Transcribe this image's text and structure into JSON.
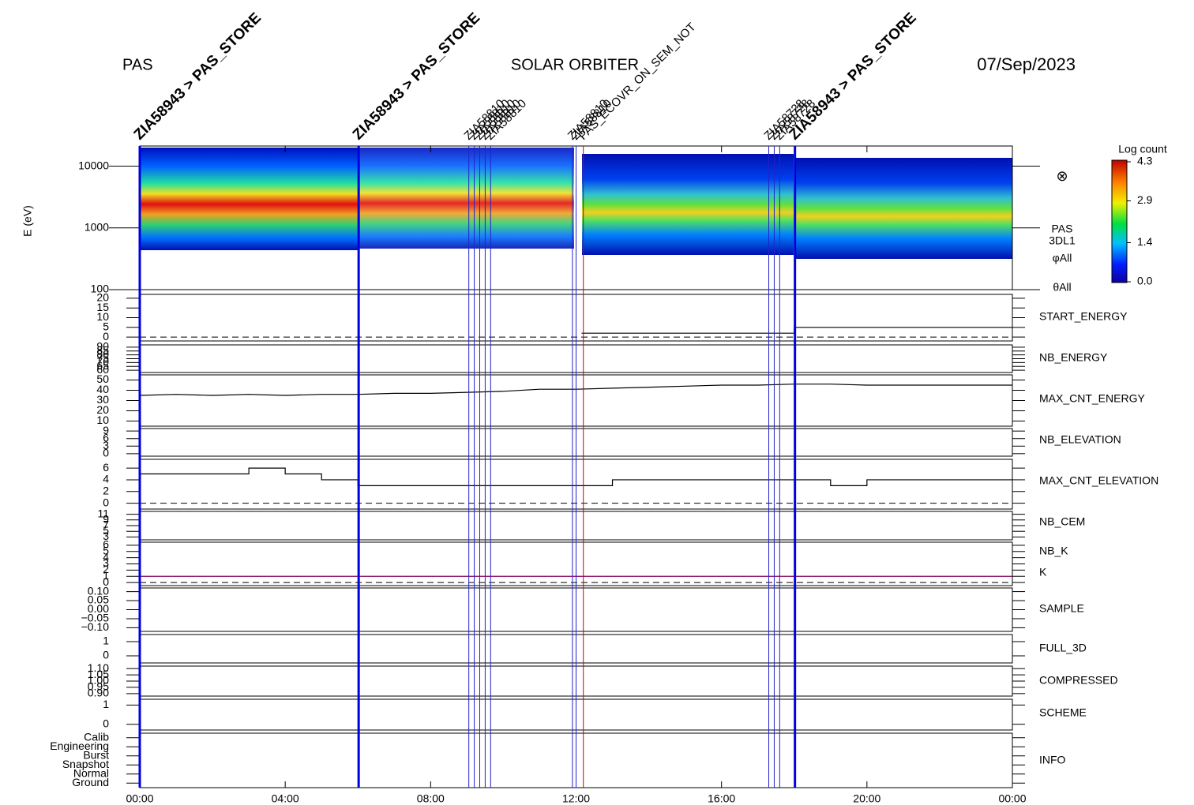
{
  "header": {
    "left": "PAS",
    "center": "SOLAR ORBITER",
    "right": "07/Sep/2023"
  },
  "chart_data": {
    "type": "multi-panel",
    "xlim": [
      0,
      24
    ],
    "xticks": [
      {
        "value": 0,
        "label": "00:00"
      },
      {
        "value": 4,
        "label": "04:00"
      },
      {
        "value": 8,
        "label": "08:00"
      },
      {
        "value": 12,
        "label": "12:00"
      },
      {
        "value": 16,
        "label": "16:00"
      },
      {
        "value": 20,
        "label": "20:00"
      },
      {
        "value": 24,
        "label": "00:00"
      }
    ],
    "spectrogram": {
      "ylabel": "E (eV)",
      "log_scale": true,
      "ylim": [
        100,
        20000
      ],
      "yticks": [
        100,
        1000,
        10000
      ],
      "side_labels": [
        "PAS",
        "3DL1",
        "φAll",
        "θAll"
      ],
      "symbol": "⊗",
      "colorbar": {
        "title": "Log count",
        "lim": [
          0,
          4.3
        ],
        "ticks": [
          4.3,
          2.9,
          1.4,
          {
            "value": 0,
            "label": "0.0"
          }
        ]
      }
    },
    "panels": [
      {
        "labels": [
          {
            "text": "START_ENERGY",
            "color": "#000000"
          }
        ],
        "ylim": [
          -2,
          22
        ],
        "yticks": [
          0,
          5,
          10,
          15,
          20
        ],
        "zero_line": true,
        "series": [
          {
            "color": "#000000",
            "step": true,
            "x": [
              12.15,
              18,
              24
            ],
            "values": [
              2,
              5,
              5
            ]
          }
        ]
      },
      {
        "labels": [
          {
            "text": "NB_ENERGY",
            "color": "#1a1aa6"
          }
        ],
        "ylim": [
          57,
          93
        ],
        "yticks": [
          60,
          65,
          70,
          75,
          80,
          85,
          90
        ],
        "zero_line": false,
        "series": []
      },
      {
        "labels": [
          {
            "text": "MAX_CNT_ENERGY",
            "color": "#000000"
          }
        ],
        "ylim": [
          5,
          55
        ],
        "yticks": [
          10,
          20,
          30,
          40,
          50
        ],
        "zero_line": false,
        "series": [
          {
            "color": "#000000",
            "step": false,
            "x": [
              0,
              1,
              2,
              3,
              4,
              5,
              6,
              7,
              8,
              9,
              10,
              11,
              12,
              13,
              14,
              15,
              16,
              17,
              18,
              19,
              20,
              21,
              22,
              23,
              24
            ],
            "values": [
              35,
              36,
              35,
              36,
              35,
              36,
              36,
              37,
              37,
              38,
              39,
              41,
              41,
              42,
              43,
              44,
              45,
              45,
              46,
              46,
              45,
              45,
              45,
              45,
              45
            ]
          }
        ]
      },
      {
        "labels": [
          {
            "text": "NB_ELEVATION",
            "color": "#1a1aa6"
          }
        ],
        "ylim": [
          -1,
          10
        ],
        "yticks": [
          0,
          3,
          6,
          9
        ],
        "zero_line": false,
        "series": []
      },
      {
        "labels": [
          {
            "text": "MAX_CNT_ELEVATION",
            "color": "#000000"
          }
        ],
        "ylim": [
          -1,
          7.5
        ],
        "yticks": [
          0,
          2,
          4,
          6
        ],
        "zero_line": true,
        "series": [
          {
            "color": "#000000",
            "step": true,
            "x": [
              0,
              1,
              2,
              3,
              4,
              5,
              6,
              7,
              8,
              9,
              10,
              11,
              12,
              13,
              14,
              15,
              16,
              17,
              18,
              19,
              20,
              21,
              22,
              23,
              24
            ],
            "values": [
              5,
              5,
              5,
              6,
              5,
              4,
              3,
              3,
              3,
              3,
              3,
              3,
              3,
              4,
              4,
              4,
              4,
              4,
              4,
              3,
              4,
              4,
              4,
              4,
              4
            ]
          }
        ]
      },
      {
        "labels": [
          {
            "text": "NB_CEM",
            "color": "#1a1aa6"
          }
        ],
        "ylim": [
          2,
          12
        ],
        "yticks": [
          3,
          5,
          7,
          9,
          11
        ],
        "zero_line": false,
        "series": []
      },
      {
        "labels": [
          {
            "text": "NB_K",
            "color": "#d00000"
          },
          {
            "text": "K",
            "color": "#1a1aa6"
          }
        ],
        "ylim": [
          -0.5,
          6.5
        ],
        "yticks": [
          0,
          1,
          2,
          3,
          4,
          5,
          6
        ],
        "zero_line": true,
        "series": [
          {
            "color": "#800060",
            "step": true,
            "x": [
              0,
              24
            ],
            "values": [
              1,
              1
            ]
          }
        ]
      },
      {
        "labels": [
          {
            "text": "SAMPLE",
            "color": "#1a1aa6"
          }
        ],
        "ylim": [
          -0.12,
          0.12
        ],
        "yticks": [
          {
            "value": -0.1,
            "label": "−0.10"
          },
          {
            "value": -0.05,
            "label": "−0.05"
          },
          {
            "value": 0,
            "label": "0.00"
          },
          0.05,
          {
            "value": 0.1,
            "label": "0.10"
          }
        ],
        "zero_line": false,
        "series": []
      },
      {
        "labels": [
          {
            "text": "FULL_3D",
            "color": "#1a1aa6"
          }
        ],
        "ylim": [
          -0.5,
          1.5
        ],
        "yticks": [
          0,
          1
        ],
        "zero_line": false,
        "series": []
      },
      {
        "labels": [
          {
            "text": "COMPRESSED",
            "color": "#000000"
          }
        ],
        "ylim": [
          0.88,
          1.12
        ],
        "yticks": [
          {
            "value": 0.9,
            "label": "0.90"
          },
          0.95,
          {
            "value": 1,
            "label": "1.00"
          },
          1.05,
          {
            "value": 1.1,
            "label": "1.10"
          }
        ],
        "zero_line": false,
        "series": []
      },
      {
        "labels": [
          {
            "text": "SCHEME",
            "color": "#000000"
          }
        ],
        "ylim": [
          -0.3,
          1.3
        ],
        "yticks": [
          0,
          1
        ],
        "zero_line": false,
        "series": []
      },
      {
        "labels": [
          {
            "text": "INFO",
            "color": "#000000"
          }
        ],
        "ylim": [
          -0.5,
          5.5
        ],
        "yticks": [
          {
            "value": 0,
            "label": "Ground"
          },
          {
            "value": 1,
            "label": "Normal"
          },
          {
            "value": 2,
            "label": "Snapshot"
          },
          {
            "value": 3,
            "label": "Burst"
          },
          {
            "value": 4,
            "label": "Engineering"
          },
          {
            "value": 5,
            "label": "Calib"
          }
        ],
        "zero_line": false,
        "series": []
      }
    ],
    "events": [
      {
        "time": 0.0,
        "label": "ZIA58943 > PAS_STORE",
        "color": "#0000dd",
        "bold": true
      },
      {
        "time": 6.02,
        "label": "ZIA58943 > PAS_STORE",
        "color": "#0000dd",
        "bold": true
      },
      {
        "time": 9.05,
        "label": "ZIA58810",
        "color": "#2222cc",
        "bold": false
      },
      {
        "time": 9.2,
        "label": "ZIA58810",
        "color": "#2222cc",
        "bold": false
      },
      {
        "time": 9.35,
        "label": "ZIA58810",
        "color": "#2222cc",
        "bold": false
      },
      {
        "time": 9.5,
        "label": "ZIA58810",
        "color": "#2222cc",
        "bold": false
      },
      {
        "time": 9.65,
        "label": "ZIA58810",
        "color": "#2222cc",
        "bold": false
      },
      {
        "time": 11.9,
        "label": "ZIA58810",
        "color": "#2222cc",
        "bold": false
      },
      {
        "time": 12.0,
        "label": "ZIA58810",
        "color": "#2222cc",
        "bold": false
      },
      {
        "time": 12.2,
        "label": "PAS_ECOVR_ON_SEM_NOT",
        "color": "#d00000",
        "bold": false
      },
      {
        "time": 17.3,
        "label": "ZIA58728",
        "color": "#2222cc",
        "bold": false
      },
      {
        "time": 17.45,
        "label": "ZIA58728",
        "color": "#2222cc",
        "bold": false
      },
      {
        "time": 17.6,
        "label": "ZIA58728",
        "color": "#2222cc",
        "bold": false
      },
      {
        "time": 18.02,
        "label": "ZIA58943 > PAS_STORE",
        "color": "#0000dd",
        "bold": true
      }
    ]
  }
}
